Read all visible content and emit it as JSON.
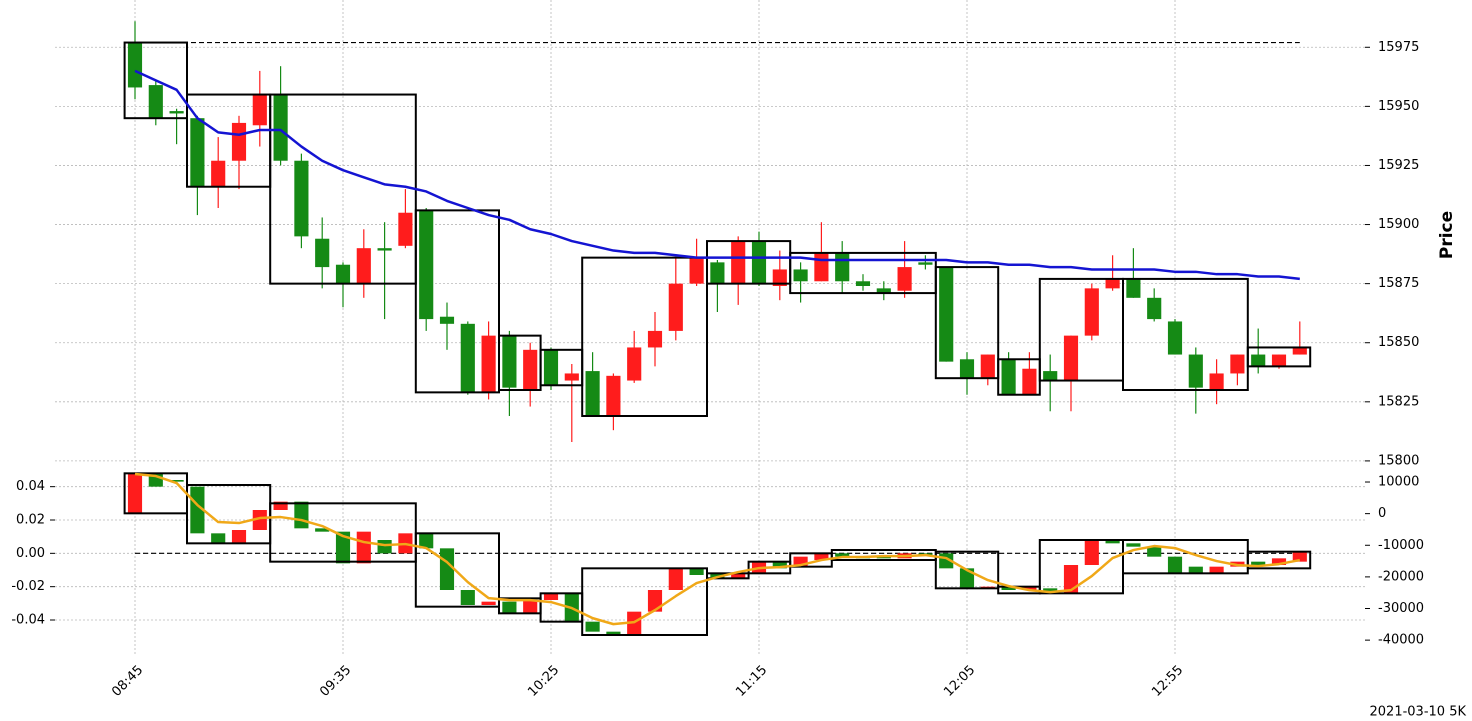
{
  "chart_data": [
    {
      "type": "candlestick",
      "ylabel": "Price",
      "y_axis_side": "right",
      "grid": true,
      "up_color": "#ff1c1c",
      "down_color": "#158a15",
      "categories": [
        "08:45",
        null,
        null,
        null,
        null,
        null,
        null,
        null,
        null,
        null,
        "09:35",
        null,
        null,
        null,
        null,
        null,
        null,
        null,
        null,
        null,
        "10:25",
        null,
        null,
        null,
        null,
        null,
        null,
        null,
        null,
        null,
        "11:15",
        null,
        null,
        null,
        null,
        null,
        null,
        null,
        null,
        null,
        "12:05",
        null,
        null,
        null,
        null,
        null,
        null,
        null,
        null,
        null,
        "12:55",
        null,
        null,
        null,
        null,
        null,
        null
      ],
      "open": [
        15977,
        15959,
        15948,
        15945,
        15916,
        15927,
        15942,
        15955,
        15927,
        15894,
        15883,
        15875,
        15890,
        15891,
        15906,
        15861,
        15858,
        15829,
        15853,
        15830,
        15847,
        15834,
        15838,
        15819,
        15834,
        15848,
        15855,
        15875,
        15884,
        15875,
        15893,
        15874,
        15881,
        15876,
        15888,
        15876,
        15873,
        15872,
        15884,
        15882,
        15843,
        15835,
        15843,
        15828,
        15838,
        15834,
        15853,
        15873,
        15877,
        15869,
        15859,
        15845,
        15830,
        15837,
        15845,
        15840,
        15845
      ],
      "high": [
        15986,
        15961,
        15949,
        15946,
        15937,
        15946,
        15965,
        15967,
        15930,
        15903,
        15884,
        15898,
        15901,
        15915,
        15907,
        15867,
        15859,
        15859,
        15855,
        15850,
        15848,
        15841,
        15846,
        15837,
        15855,
        15863,
        15886,
        15894,
        15885,
        15895,
        15897,
        15889,
        15884,
        15901,
        15893,
        15879,
        15876,
        15893,
        15887,
        15882,
        15846,
        15845,
        15846,
        15846,
        15845,
        15853,
        15875,
        15887,
        15890,
        15873,
        15860,
        15848,
        15843,
        15845,
        15856,
        15845,
        15859
      ],
      "low": [
        15953,
        15942,
        15934,
        15904,
        15907,
        15915,
        15933,
        15925,
        15890,
        15873,
        15865,
        15869,
        15860,
        15890,
        15855,
        15847,
        15828,
        15826,
        15819,
        15823,
        15830,
        15808,
        15819,
        15813,
        15833,
        15840,
        15851,
        15874,
        15863,
        15866,
        15874,
        15868,
        15867,
        15876,
        15871,
        15872,
        15868,
        15869,
        15881,
        15842,
        15828,
        15832,
        15828,
        15828,
        15821,
        15821,
        15851,
        15872,
        15869,
        15859,
        15845,
        15820,
        15824,
        15832,
        15837,
        15839,
        15845
      ],
      "close": [
        15958,
        15945,
        15947,
        15916,
        15927,
        15943,
        15955,
        15927,
        15895,
        15882,
        15875,
        15890,
        15889,
        15905,
        15860,
        15858,
        15829,
        15853,
        15831,
        15847,
        15832,
        15837,
        15819,
        15836,
        15848,
        15855,
        15875,
        15886,
        15875,
        15893,
        15875,
        15881,
        15876,
        15888,
        15876,
        15874,
        15871,
        15882,
        15883,
        15842,
        15835,
        15845,
        15828,
        15839,
        15834,
        15853,
        15873,
        15877,
        15869,
        15860,
        15845,
        15831,
        15837,
        15845,
        15840,
        15845,
        15848
      ],
      "lines": [
        {
          "color": "#1414d2",
          "values": [
            15965,
            15961,
            15957,
            15945,
            15939,
            15938,
            15940,
            15940,
            15933,
            15927,
            15923,
            15920,
            15917,
            15916,
            15914,
            15910,
            15907,
            15904,
            15902,
            15898,
            15896,
            15893,
            15891,
            15889,
            15888,
            15888,
            15887,
            15886,
            15886,
            15886,
            15886,
            15886,
            15886,
            15885,
            15885,
            15885,
            15885,
            15885,
            15885,
            15885,
            15884,
            15884,
            15883,
            15883,
            15882,
            15882,
            15881,
            15881,
            15881,
            15881,
            15880,
            15880,
            15879,
            15879,
            15878,
            15878,
            15877
          ]
        }
      ],
      "hline": {
        "value": 15977
      },
      "boxes": [
        {
          "span": [
            0,
            2
          ],
          "range": [
            15945,
            15977
          ]
        },
        {
          "span": [
            3,
            6
          ],
          "range": [
            15916,
            15955
          ]
        },
        {
          "span": [
            7,
            13
          ],
          "range": [
            15875,
            15955
          ]
        },
        {
          "span": [
            14,
            17
          ],
          "range": [
            15829,
            15906
          ]
        },
        {
          "span": [
            18,
            19
          ],
          "range": [
            15830,
            15853
          ]
        },
        {
          "span": [
            20,
            21
          ],
          "range": [
            15832,
            15847
          ]
        },
        {
          "span": [
            22,
            27
          ],
          "range": [
            15819,
            15886
          ]
        },
        {
          "span": [
            28,
            31
          ],
          "range": [
            15875,
            15893
          ]
        },
        {
          "span": [
            32,
            38
          ],
          "range": [
            15871,
            15888
          ]
        },
        {
          "span": [
            39,
            41
          ],
          "range": [
            15835,
            15882
          ]
        },
        {
          "span": [
            42,
            43
          ],
          "range": [
            15828,
            15843
          ]
        },
        {
          "span": [
            44,
            47
          ],
          "range": [
            15834,
            15877
          ]
        },
        {
          "span": [
            48,
            53
          ],
          "range": [
            15830,
            15877
          ]
        },
        {
          "span": [
            54,
            56
          ],
          "range": [
            15840,
            15848
          ]
        }
      ],
      "ylim": [
        15797,
        15995
      ],
      "yticks": [
        15800,
        15825,
        15850,
        15875,
        15900,
        15925,
        15950,
        15975
      ]
    },
    {
      "type": "candlestick",
      "y_axis_side": "left",
      "grid": true,
      "up_color": "#ff1c1c",
      "down_color": "#158a15",
      "open": [
        0.024,
        0.048,
        0.044,
        0.04,
        0.012,
        0.006,
        0.014,
        0.026,
        0.031,
        0.015,
        0.013,
        -0.006,
        0.008,
        0,
        0.012,
        0.003,
        -0.022,
        -0.031,
        -0.029,
        -0.036,
        -0.028,
        -0.024,
        -0.041,
        -0.047,
        -0.049,
        -0.035,
        -0.022,
        -0.009,
        -0.012,
        -0.015,
        -0.012,
        -0.005,
        -0.008,
        -0.004,
        0,
        -0.002,
        -0.002,
        -0.003,
        0,
        0,
        -0.009,
        -0.021,
        -0.02,
        -0.022,
        -0.021,
        -0.024,
        -0.007,
        0.008,
        0.006,
        0.004,
        -0.002,
        -0.008,
        -0.012,
        -0.008,
        -0.005,
        -0.007,
        -0.005
      ],
      "close": [
        0.048,
        0.04,
        0.043,
        0.012,
        0.006,
        0.014,
        0.026,
        0.031,
        0.015,
        0.013,
        -0.006,
        0.013,
        0,
        0.012,
        0.003,
        -0.022,
        -0.031,
        -0.029,
        -0.036,
        -0.028,
        -0.024,
        -0.041,
        -0.047,
        -0.049,
        -0.035,
        -0.022,
        -0.009,
        -0.013,
        -0.015,
        -0.012,
        -0.005,
        -0.009,
        -0.002,
        0,
        -0.002,
        -0.003,
        -0.003,
        0,
        -0.001,
        -0.009,
        -0.021,
        -0.02,
        -0.022,
        -0.02,
        -0.024,
        -0.007,
        0.008,
        0.006,
        0.004,
        -0.002,
        -0.012,
        -0.012,
        -0.008,
        -0.005,
        -0.007,
        -0.003,
        0.001
      ],
      "lines": [
        {
          "color": "#f0a818",
          "axis": "y2",
          "values": [
            12530,
            11900,
            9680,
            2720,
            -2660,
            -2970,
            -1390,
            -1080,
            -2030,
            -3920,
            -7090,
            -8990,
            -9940,
            -9620,
            -10890,
            -15320,
            -21650,
            -26710,
            -27340,
            -27340,
            -27970,
            -29870,
            -33040,
            -34940,
            -34300,
            -30510,
            -26080,
            -21960,
            -20060,
            -18480,
            -17210,
            -16900,
            -16270,
            -14680,
            -13730,
            -13730,
            -13420,
            -13420,
            -13100,
            -14050,
            -17850,
            -21010,
            -22910,
            -24180,
            -24810,
            -24180,
            -19750,
            -14050,
            -11520,
            -10250,
            -10890,
            -13100,
            -15000,
            -16270,
            -16580,
            -15950,
            -14680
          ]
        }
      ],
      "hline": {
        "value": 0
      },
      "boxes": [
        {
          "span": [
            0,
            2
          ],
          "range": [
            0.024,
            0.048
          ]
        },
        {
          "span": [
            3,
            6
          ],
          "range": [
            0.006,
            0.041
          ]
        },
        {
          "span": [
            7,
            13
          ],
          "range": [
            -0.005,
            0.03
          ]
        },
        {
          "span": [
            14,
            17
          ],
          "range": [
            -0.032,
            0.012
          ]
        },
        {
          "span": [
            18,
            19
          ],
          "range": [
            -0.036,
            -0.027
          ]
        },
        {
          "span": [
            20,
            21
          ],
          "range": [
            -0.041,
            -0.024
          ]
        },
        {
          "span": [
            22,
            27
          ],
          "range": [
            -0.049,
            -0.009
          ]
        },
        {
          "span": [
            28,
            29
          ],
          "range": [
            -0.015,
            -0.012
          ]
        },
        {
          "span": [
            30,
            31
          ],
          "range": [
            -0.012,
            -0.005
          ]
        },
        {
          "span": [
            32,
            33
          ],
          "range": [
            -0.008,
            0
          ]
        },
        {
          "span": [
            34,
            38
          ],
          "range": [
            -0.004,
            0.002
          ]
        },
        {
          "span": [
            39,
            41
          ],
          "range": [
            -0.021,
            0.001
          ]
        },
        {
          "span": [
            42,
            43
          ],
          "range": [
            -0.024,
            -0.02
          ]
        },
        {
          "span": [
            44,
            47
          ],
          "range": [
            -0.024,
            0.008
          ]
        },
        {
          "span": [
            48,
            53
          ],
          "range": [
            -0.012,
            0.008
          ]
        },
        {
          "span": [
            54,
            56
          ],
          "range": [
            -0.009,
            0.001
          ]
        }
      ],
      "ylim": [
        -0.061,
        0.05
      ],
      "yticks": [
        -0.04,
        -0.02,
        {
          "value": 0,
          "label": "0.00"
        },
        0.02,
        0.04
      ],
      "y2lim": [
        -44700,
        13800
      ],
      "y2ticks": [
        -40000,
        -30000,
        -20000,
        -10000,
        0,
        10000
      ],
      "footnote": "2021-03-10 5K"
    }
  ]
}
